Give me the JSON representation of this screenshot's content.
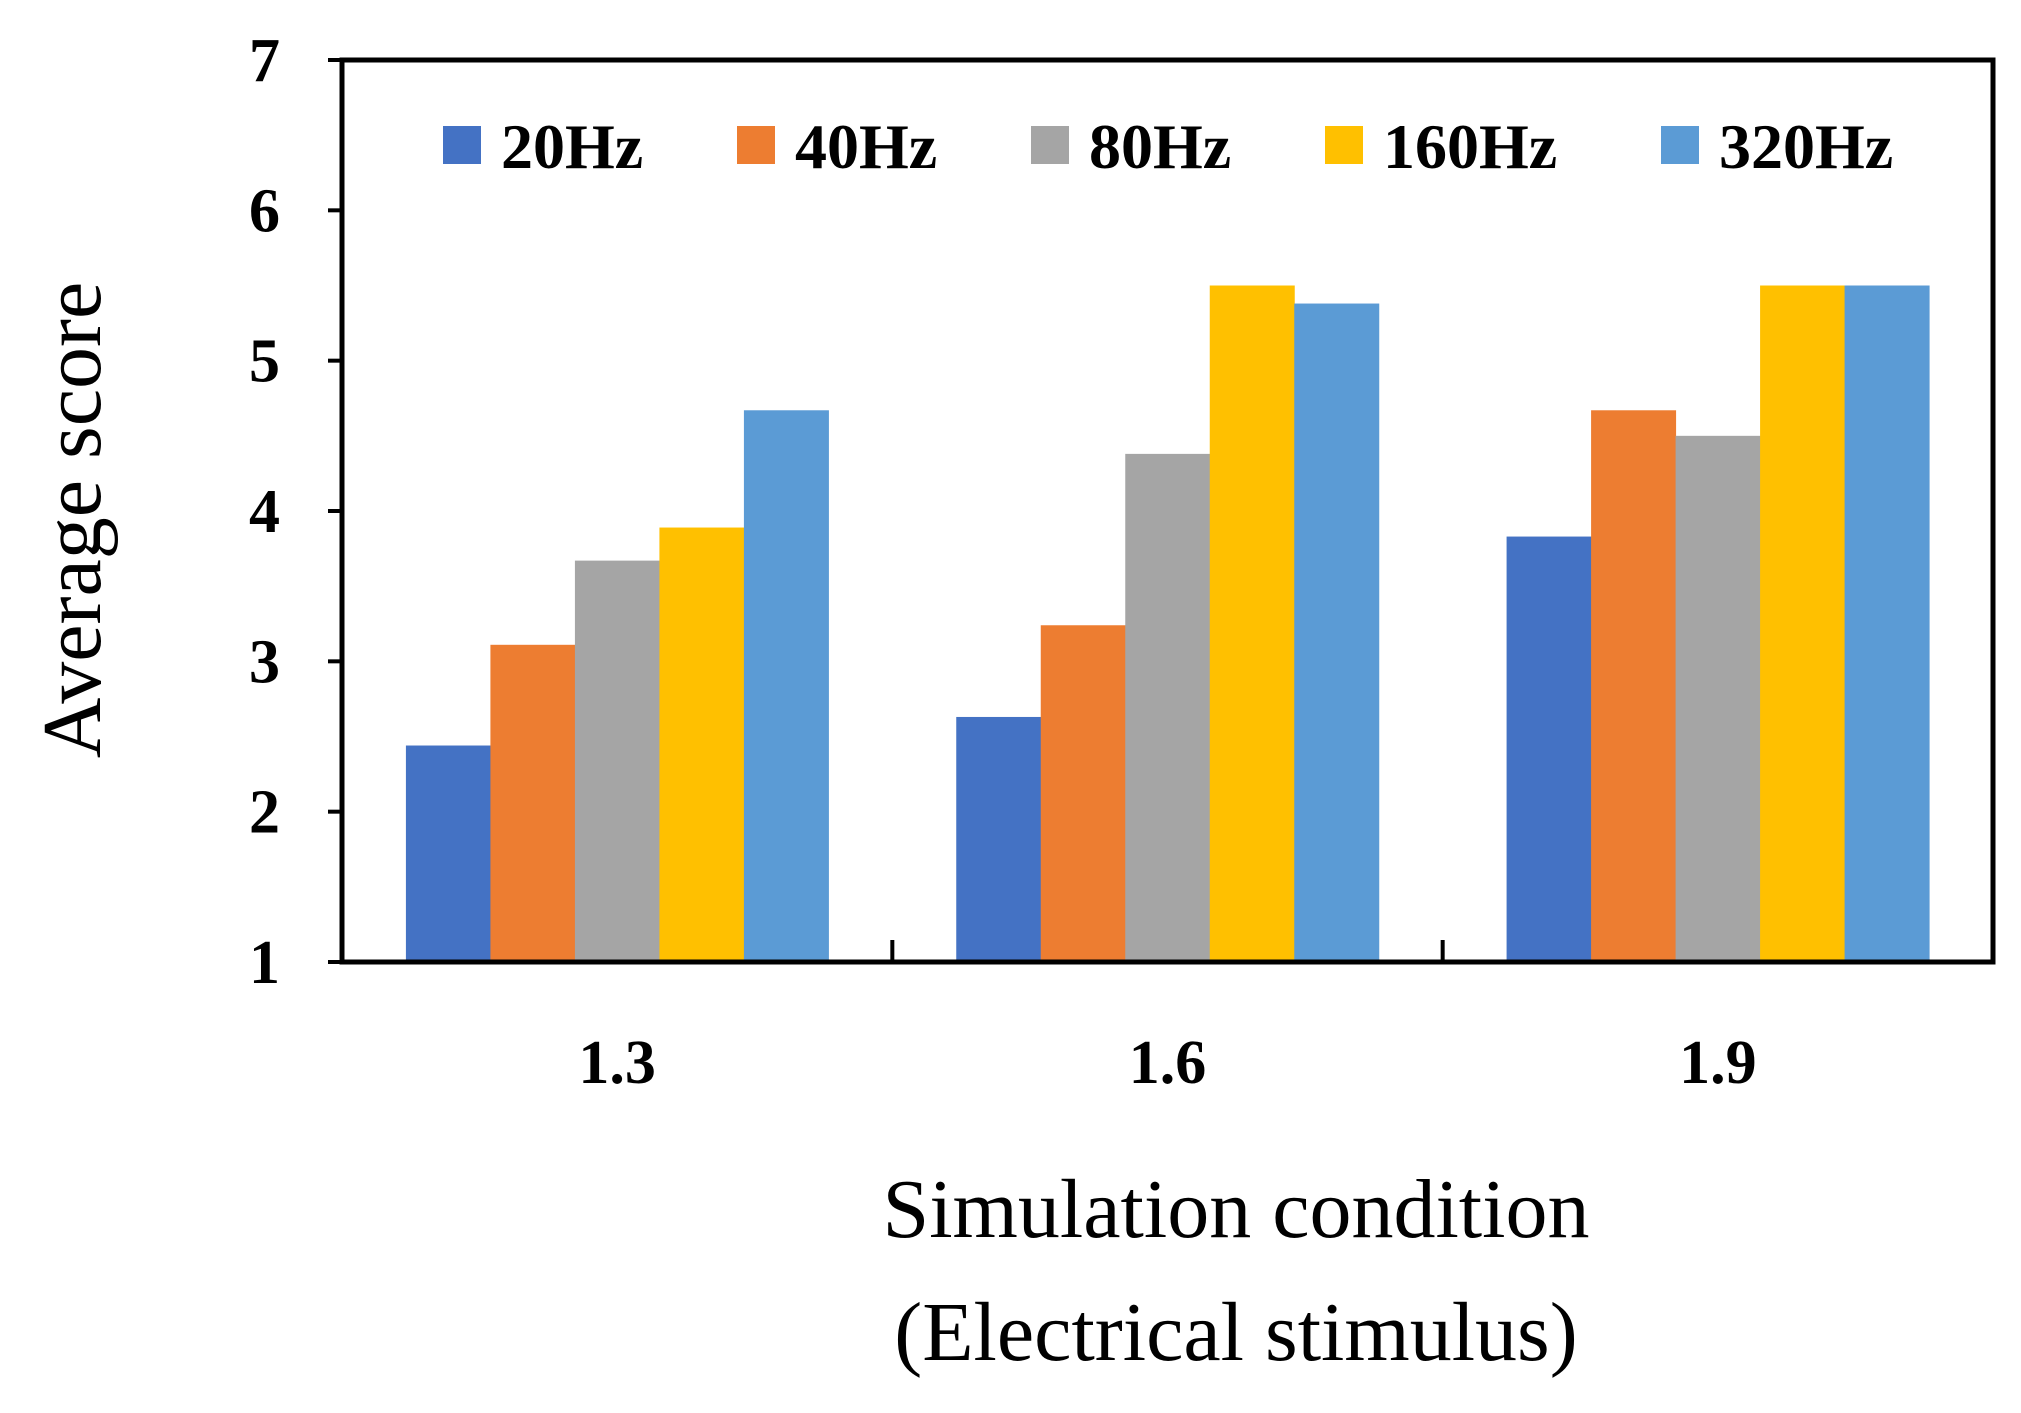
{
  "chart_data": {
    "type": "bar",
    "title": "",
    "xlabel_lines": [
      "Simulation condition",
      "(Electrical stimulus)"
    ],
    "ylabel": "Average score",
    "ylim": [
      1,
      7
    ],
    "yticks": [
      1,
      2,
      3,
      4,
      5,
      6,
      7
    ],
    "categories": [
      "1.3",
      "1.6",
      "1.9"
    ],
    "legend_position": "top",
    "series": [
      {
        "name": "20Hz",
        "color": "#4472C4",
        "values": [
          2.44,
          2.63,
          3.83
        ]
      },
      {
        "name": "40Hz",
        "color": "#ED7D31",
        "values": [
          3.11,
          3.24,
          4.67
        ]
      },
      {
        "name": "80Hz",
        "color": "#A5A5A5",
        "values": [
          3.67,
          4.38,
          4.5
        ]
      },
      {
        "name": "160Hz",
        "color": "#FFC000",
        "values": [
          3.89,
          5.5,
          5.5
        ]
      },
      {
        "name": "320Hz",
        "color": "#5B9BD5",
        "values": [
          4.67,
          5.38,
          5.5
        ]
      }
    ]
  }
}
